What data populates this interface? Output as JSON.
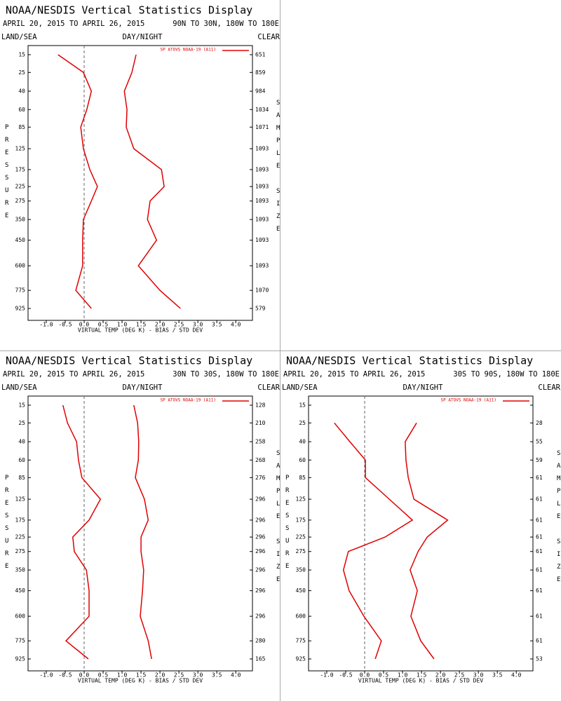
{
  "chart_data": [
    {
      "type": "line",
      "title": "NOAA/NESDIS Vertical Statistics Display",
      "subtitle": "APRIL 20, 2015 TO APRIL 26, 2015",
      "region": "90N TO 30N, 180W TO 180E",
      "land_sea": "LAND/SEA",
      "day_night": "DAY/NIGHT",
      "clear": "CLEAR",
      "y_label": "PRESSURE",
      "y2_label": "SAMPLE SIZE",
      "x_label": "VIRTUAL TEMP (DEG K) - BIAS / STD DEV",
      "xlim": [
        -1.48,
        4.44
      ],
      "xticks": [
        {
          "value": -1,
          "label": "-1.0"
        },
        -0.5,
        {
          "value": 0,
          "label": "0.0"
        },
        0.5,
        {
          "value": 1,
          "label": "1.0"
        },
        1.5,
        {
          "value": 2,
          "label": "2.0"
        },
        2.5,
        {
          "value": 3,
          "label": "3.0"
        },
        3.5,
        {
          "value": 4,
          "label": "4.0"
        }
      ],
      "ylim": [
        15,
        925
      ],
      "y_scale": "exner",
      "y_inverted": true,
      "yticks": [
        15,
        25,
        40,
        60,
        85,
        125,
        175,
        225,
        275,
        350,
        450,
        600,
        775,
        925
      ],
      "sample_size": [
        651,
        859,
        984,
        1034,
        1071,
        1093,
        1093,
        1093,
        1093,
        1093,
        1093,
        1093,
        1070,
        579
      ],
      "series": [
        {
          "name": "SP ATOVS NOAA-19 (A11)",
          "color": "#e00000",
          "values": [
            -0.69,
            -0.02,
            0.19,
            0.07,
            -0.09,
            -0.02,
            0.15,
            0.35,
            0.19,
            -0.02,
            -0.04,
            -0.04,
            -0.22,
            0.19
          ]
        },
        {
          "color": "#e00000",
          "values": [
            1.37,
            1.26,
            1.06,
            1.13,
            1.11,
            1.31,
            2.04,
            2.11,
            1.74,
            1.67,
            1.91,
            1.43,
            2.0,
            2.54
          ]
        }
      ]
    },
    {
      "type": "line",
      "title": "NOAA/NESDIS Vertical Statistics Display",
      "subtitle": "APRIL 20, 2015 TO APRIL 26, 2015",
      "region": "30N TO 30S, 180W TO 180E",
      "land_sea": "LAND/SEA",
      "day_night": "DAY/NIGHT",
      "clear": "CLEAR",
      "y_label": "PRESSURE",
      "y2_label": "SAMPLE SIZE",
      "x_label": "VIRTUAL TEMP (DEG K) - BIAS / STD DEV",
      "xlim": [
        -1.48,
        4.44
      ],
      "xticks": [
        {
          "value": -1,
          "label": "-1.0"
        },
        -0.5,
        {
          "value": 0,
          "label": "0.0"
        },
        0.5,
        {
          "value": 1,
          "label": "1.0"
        },
        1.5,
        {
          "value": 2,
          "label": "2.0"
        },
        2.5,
        {
          "value": 3,
          "label": "3.0"
        },
        3.5,
        {
          "value": 4,
          "label": "4.0"
        }
      ],
      "ylim": [
        15,
        925
      ],
      "y_scale": "exner",
      "y_inverted": true,
      "yticks": [
        15,
        25,
        40,
        60,
        85,
        125,
        175,
        225,
        275,
        350,
        450,
        600,
        775,
        925
      ],
      "sample_size": [
        128,
        210,
        258,
        268,
        276,
        296,
        296,
        296,
        296,
        296,
        296,
        296,
        280,
        165
      ],
      "series": [
        {
          "name": "SP ATOVS NOAA-19 (A11)",
          "color": "#e00000",
          "values": [
            -0.56,
            -0.44,
            -0.2,
            -0.15,
            -0.06,
            0.43,
            0.13,
            -0.3,
            -0.26,
            0.06,
            0.13,
            0.13,
            -0.48,
            0.11
          ]
        },
        {
          "color": "#e00000",
          "values": [
            1.31,
            1.41,
            1.44,
            1.43,
            1.35,
            1.59,
            1.69,
            1.5,
            1.5,
            1.57,
            1.54,
            1.48,
            1.69,
            1.78
          ]
        }
      ]
    },
    {
      "type": "line",
      "title": "NOAA/NESDIS Vertical Statistics Display",
      "subtitle": "APRIL 20, 2015 TO APRIL 26, 2015",
      "region": "30S TO 90S, 180W TO 180E",
      "land_sea": "LAND/SEA",
      "day_night": "DAY/NIGHT",
      "clear": "CLEAR",
      "y_label": "PRESSURE",
      "y2_label": "SAMPLE SIZE",
      "x_label": "VIRTUAL TEMP (DEG K) - BIAS / STD DEV",
      "xlim": [
        -1.48,
        4.44
      ],
      "xticks": [
        {
          "value": -1,
          "label": "-1.0"
        },
        -0.5,
        {
          "value": 0,
          "label": "0.0"
        },
        0.5,
        {
          "value": 1,
          "label": "1.0"
        },
        1.5,
        {
          "value": 2,
          "label": "2.0"
        },
        2.5,
        {
          "value": 3,
          "label": "3.0"
        },
        3.5,
        {
          "value": 4,
          "label": "4.0"
        }
      ],
      "ylim": [
        15,
        925
      ],
      "y_scale": "exner",
      "y_inverted": true,
      "yticks": [
        15,
        25,
        40,
        60,
        85,
        125,
        175,
        225,
        275,
        350,
        450,
        600,
        775,
        925
      ],
      "sample_size": [
        null,
        28,
        55,
        59,
        61,
        61,
        61,
        61,
        61,
        61,
        61,
        61,
        61,
        53
      ],
      "series": [
        {
          "name": "SP ATOVS NOAA-19 (A11)",
          "color": "#e00000",
          "values": [
            null,
            -0.8,
            -0.39,
            0.02,
            0.02,
            0.65,
            1.26,
            0.54,
            -0.43,
            -0.56,
            -0.41,
            -0.02,
            0.44,
            0.28
          ]
        },
        {
          "color": "#e00000",
          "values": [
            null,
            1.37,
            1.07,
            1.09,
            1.15,
            1.3,
            2.19,
            1.65,
            1.41,
            1.2,
            1.39,
            1.22,
            1.48,
            1.83
          ]
        }
      ]
    }
  ]
}
